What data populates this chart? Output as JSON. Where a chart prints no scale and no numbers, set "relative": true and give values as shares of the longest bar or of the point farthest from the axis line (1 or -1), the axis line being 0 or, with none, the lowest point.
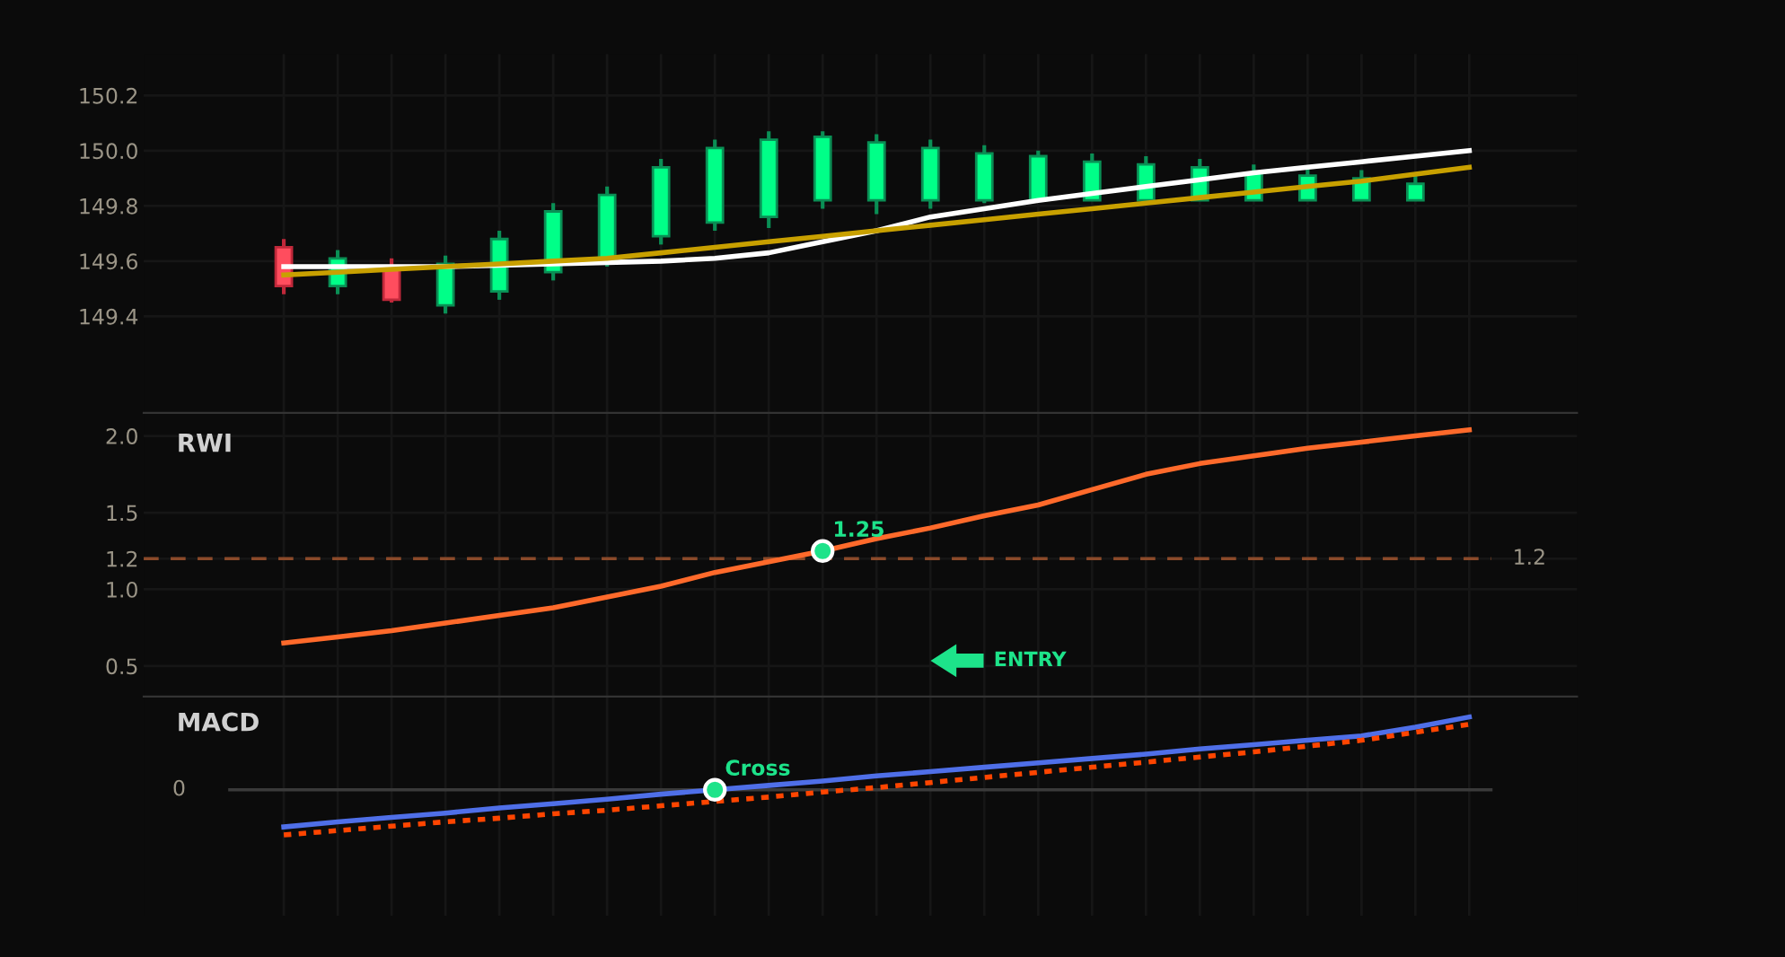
{
  "chart_data": [
    {
      "type": "candlestick",
      "categories": [
        null,
        null,
        null,
        null,
        null,
        null,
        null,
        null,
        null,
        null,
        null,
        null,
        null,
        null,
        null,
        null,
        null,
        null,
        null,
        null,
        null,
        null,
        null
      ],
      "ohlc": [
        [
          149.65,
          149.68,
          149.48,
          149.51
        ],
        [
          149.51,
          149.64,
          149.48,
          149.61
        ],
        [
          149.58,
          149.61,
          149.45,
          149.46
        ],
        [
          149.44,
          149.62,
          149.41,
          149.59
        ],
        [
          149.49,
          149.71,
          149.46,
          149.68
        ],
        [
          149.56,
          149.81,
          149.53,
          149.78
        ],
        [
          149.6,
          149.87,
          149.58,
          149.84
        ],
        [
          149.69,
          149.97,
          149.66,
          149.94
        ],
        [
          149.74,
          150.04,
          149.71,
          150.01
        ],
        [
          149.76,
          150.07,
          149.72,
          150.04
        ],
        [
          149.82,
          150.07,
          149.79,
          150.05
        ],
        [
          149.82,
          150.06,
          149.77,
          150.03
        ],
        [
          149.82,
          150.04,
          149.79,
          150.01
        ],
        [
          149.82,
          150.02,
          149.81,
          149.99
        ],
        [
          149.82,
          150.0,
          149.82,
          149.98
        ],
        [
          149.82,
          149.99,
          149.82,
          149.96
        ],
        [
          149.82,
          149.98,
          149.82,
          149.95
        ],
        [
          149.82,
          149.97,
          149.82,
          149.94
        ],
        [
          149.82,
          149.95,
          149.82,
          149.92
        ],
        [
          149.82,
          149.94,
          149.82,
          149.91
        ],
        [
          149.82,
          149.93,
          149.82,
          149.9
        ],
        [
          149.82,
          149.91,
          149.82,
          149.88
        ],
        null
      ],
      "colors": [
        "#ff4d5e",
        "#00ff88",
        "#ff4d5e",
        "#00ff88",
        "#00ff88",
        "#00ff88",
        "#00ff88",
        "#00ff88",
        "#00ff88",
        "#00ff88",
        "#00ff88",
        "#00ff88",
        "#00ff88",
        "#00ff88",
        "#00ff88",
        "#00ff88",
        "#00ff88",
        "#00ff88",
        "#00ff88",
        "#00ff88",
        "#00ff88",
        "#00ff88",
        null
      ],
      "series": [
        {
          "type": "line",
          "color": "#ffffff",
          "values": [
            149.58,
            149.58,
            149.58,
            149.58,
            149.585,
            149.59,
            149.595,
            149.6,
            149.61,
            149.63,
            149.67,
            149.71,
            149.76,
            149.79,
            149.82,
            149.845,
            149.87,
            149.895,
            149.92,
            149.94,
            149.96,
            149.98,
            150.0
          ]
        },
        {
          "type": "line",
          "color": "#c8a000",
          "values": [
            149.55,
            149.56,
            149.57,
            149.58,
            149.59,
            149.6,
            149.61,
            149.63,
            149.65,
            149.67,
            149.69,
            149.71,
            149.73,
            149.75,
            149.77,
            149.79,
            149.81,
            149.83,
            149.85,
            149.87,
            149.89,
            149.915,
            149.94
          ]
        }
      ],
      "ylim": [
        149.05,
        150.35
      ],
      "yticks": [
        149.4,
        149.6,
        149.8,
        {
          "value": 150.0,
          "label": "150.0"
        },
        150.2
      ],
      "grid": true,
      "tick_labels": "y"
    },
    {
      "type": "line",
      "title": "RWI",
      "categories": [
        null,
        null,
        null,
        null,
        null,
        null,
        null,
        null,
        null,
        null,
        null,
        null,
        null,
        null,
        null,
        null,
        null,
        null,
        null,
        null,
        null,
        null,
        null
      ],
      "series": [
        {
          "color": "#ff6a2b",
          "values": [
            0.65,
            0.69,
            0.73,
            0.78,
            0.83,
            0.88,
            0.95,
            1.02,
            1.11,
            1.18,
            1.25,
            1.33,
            1.4,
            1.48,
            1.55,
            1.65,
            1.75,
            1.82,
            1.87,
            1.92,
            1.96,
            2.0,
            2.04
          ]
        }
      ],
      "ylim": [
        0.3,
        2.15
      ],
      "yticks": [
        0.5,
        {
          "value": 1.0,
          "label": "1.0"
        },
        1.2,
        1.5,
        {
          "value": 2.0,
          "label": "2.0"
        }
      ],
      "ref_lines": [
        {
          "axis": "y",
          "value": 1.2,
          "label": "1.2",
          "color": "#8b4a2a",
          "line_style": "dashed"
        }
      ],
      "annotations": [
        {
          "text": "1.25",
          "y": 1.25
        },
        "ENTRY"
      ],
      "grid": true,
      "tick_labels": "y"
    },
    {
      "type": "line",
      "title": "MACD",
      "relative": true,
      "categories": [
        null,
        null,
        null,
        null,
        null,
        null,
        null,
        null,
        null,
        null,
        null,
        null,
        null,
        null,
        null,
        null,
        null,
        null,
        null,
        null,
        null,
        null,
        null
      ],
      "series": [
        {
          "color": "#4f6fe8",
          "line_style": "solid",
          "values": [
            -0.51,
            -0.44,
            -0.38,
            -0.32,
            -0.25,
            -0.19,
            -0.13,
            -0.06,
            0,
            0.06,
            0.12,
            0.19,
            0.25,
            0.31,
            0.37,
            0.43,
            0.49,
            0.56,
            0.62,
            0.68,
            0.74,
            0.86,
            1
          ]
        },
        {
          "color": "#ff4500",
          "line_style": "dotted",
          "values": [
            -0.62,
            -0.56,
            -0.5,
            -0.44,
            -0.39,
            -0.33,
            -0.28,
            -0.22,
            -0.16,
            -0.1,
            -0.03,
            0.03,
            0.1,
            0.17,
            0.24,
            0.31,
            0.38,
            0.45,
            0.52,
            0.6,
            0.68,
            0.79,
            0.9
          ]
        }
      ],
      "ref_lines": [
        {
          "axis": "y",
          "value": 0,
          "label": "0",
          "color": "#3a3a3a",
          "line_style": "solid"
        }
      ],
      "annotations": [
        {
          "text": "Cross",
          "y": 0
        }
      ],
      "grid": true,
      "tick_labels": false
    }
  ]
}
